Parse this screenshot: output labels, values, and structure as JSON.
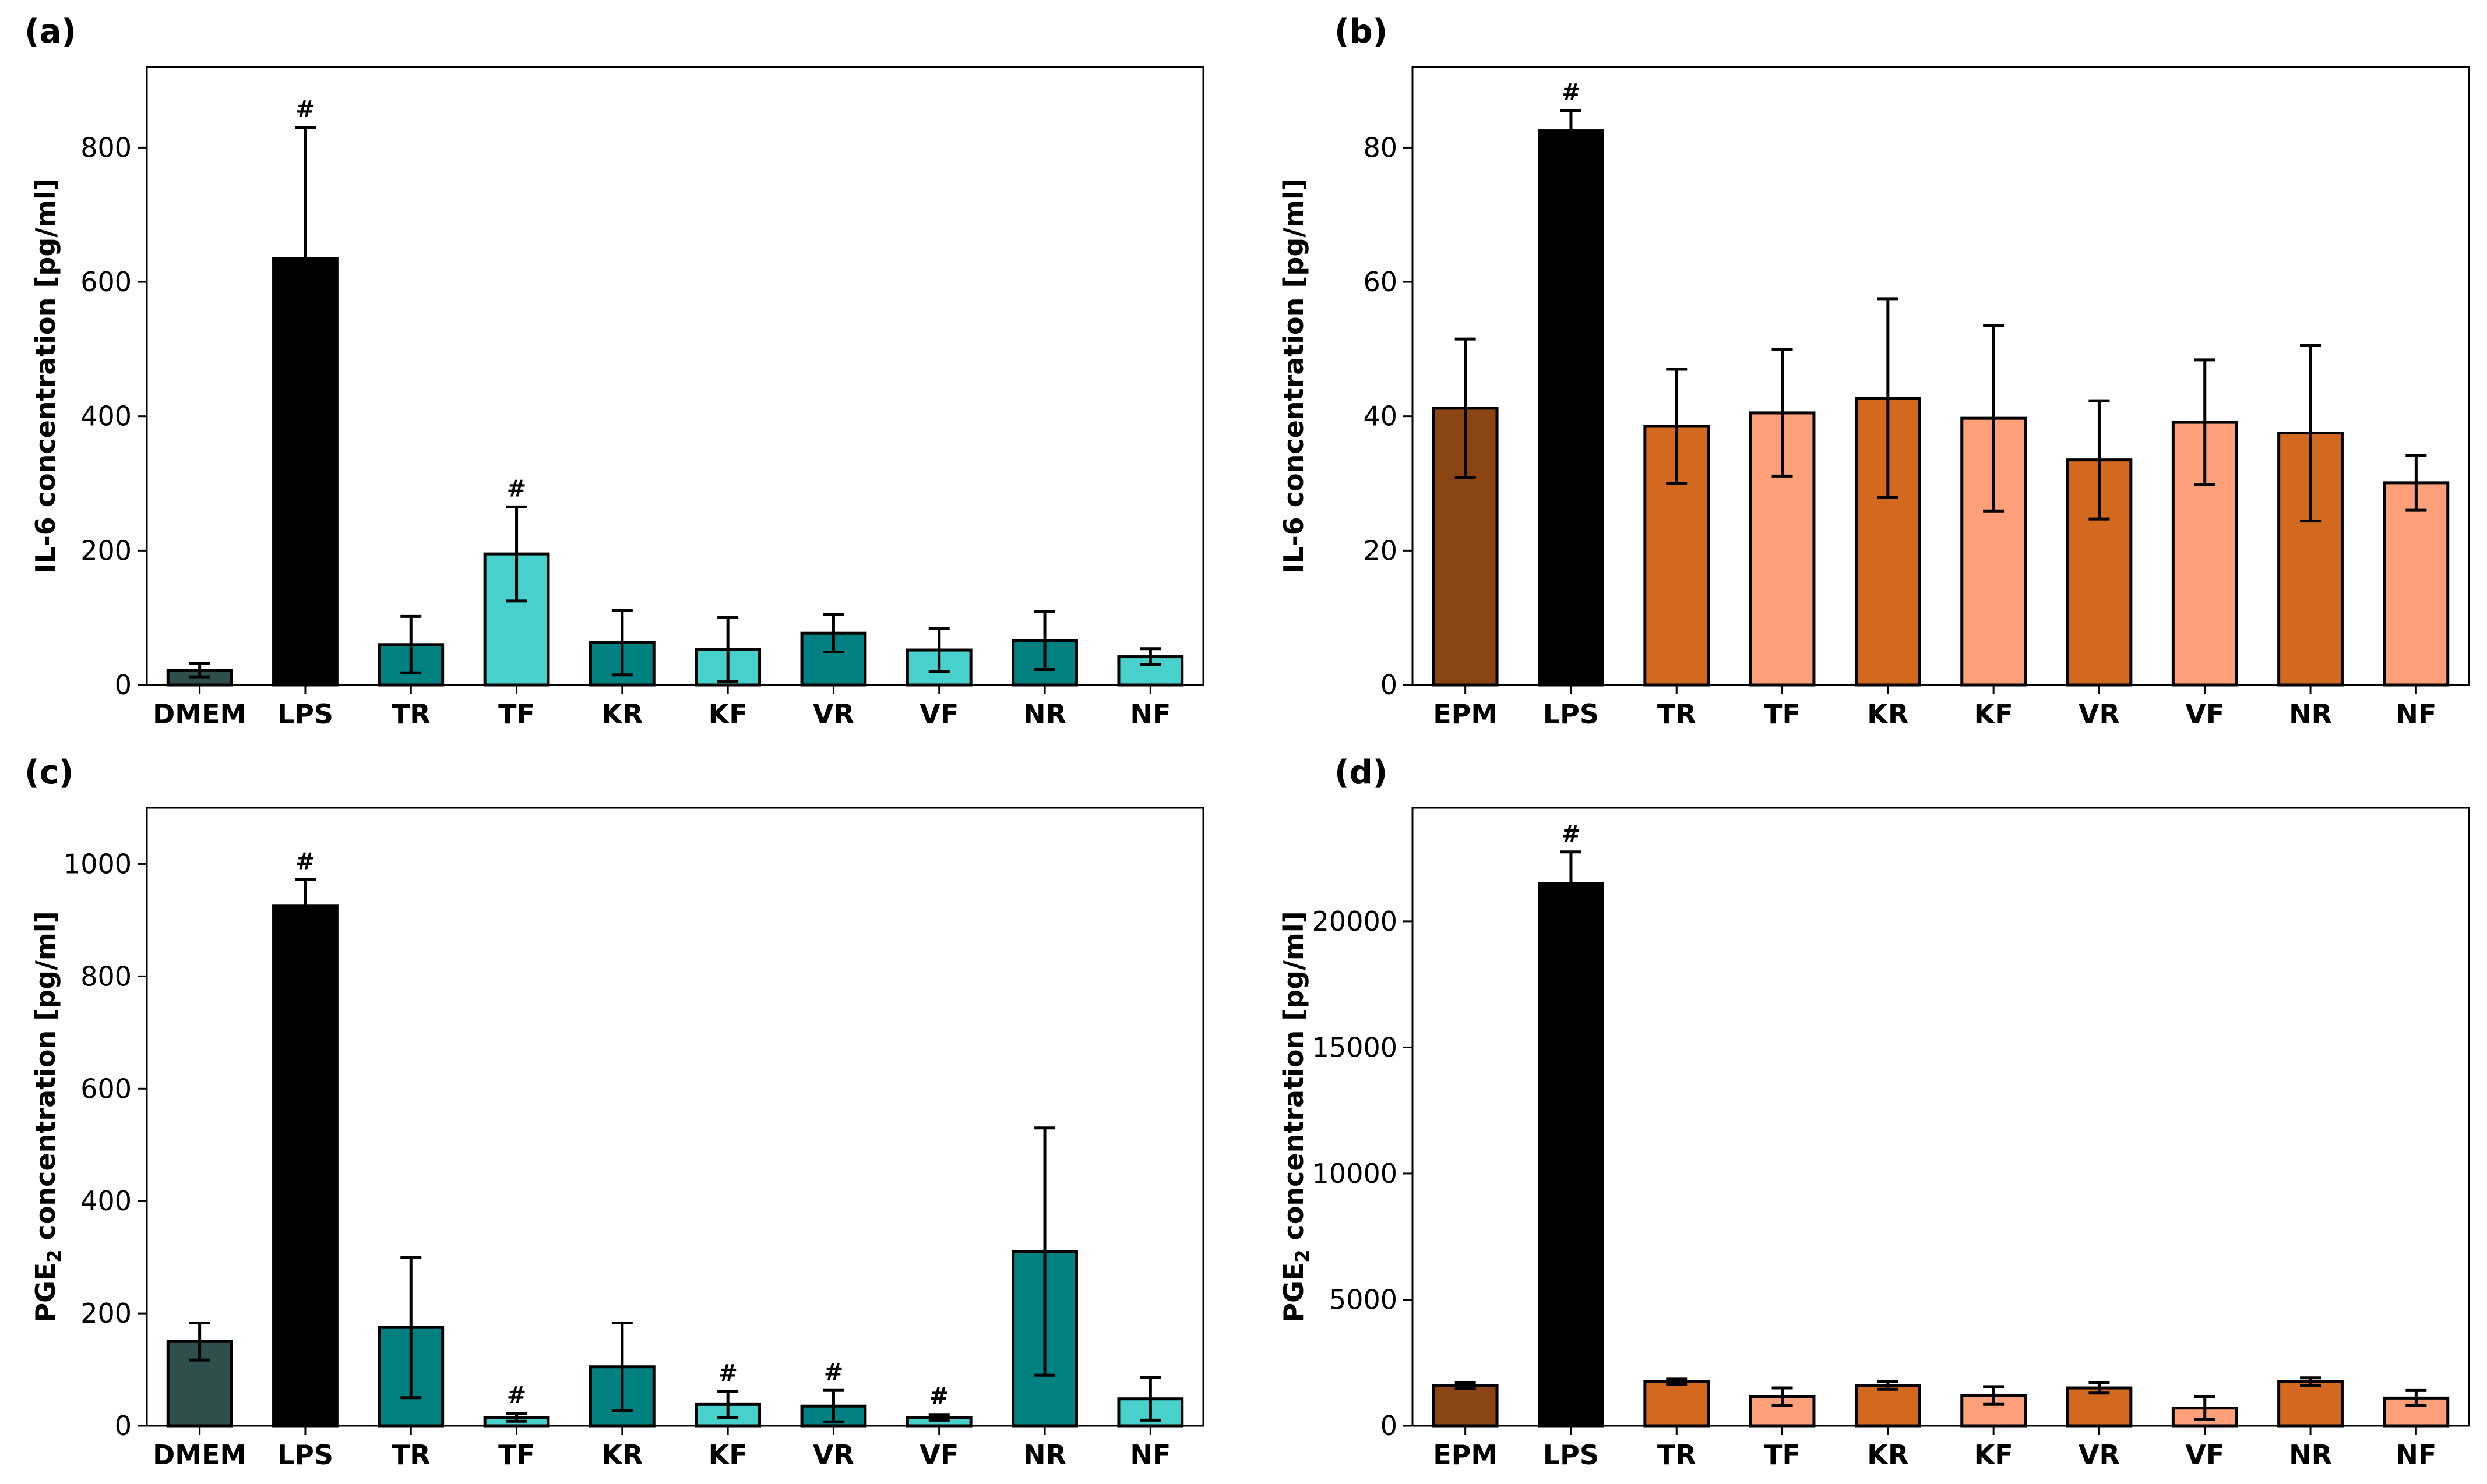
{
  "colors": {
    "dark_slate": "#2f4f4f",
    "teal": "#008080",
    "turquoise": "#48d1cc",
    "black": "#000000",
    "saddle_brown": "#8b4513",
    "chocolate": "#d2691e",
    "light_salmon": "#ffa07a"
  },
  "chart_data": [
    {
      "panel": "(a)",
      "type": "bar",
      "ylabel": "IL-6 concentration [pg/ml]",
      "ylim": [
        0,
        920
      ],
      "yticks": [
        0,
        200,
        400,
        600,
        800
      ],
      "categories": [
        "DMEM",
        "LPS",
        "TR",
        "TF",
        "KR",
        "KF",
        "VR",
        "VF",
        "NR",
        "NF"
      ],
      "values": [
        22,
        635,
        60,
        195,
        63,
        53,
        77,
        52,
        66,
        42
      ],
      "errors": [
        10,
        195,
        42,
        70,
        48,
        48,
        28,
        32,
        43,
        12
      ],
      "colors": [
        "#2f4f4f",
        "#000000",
        "#008080",
        "#48d1cc",
        "#008080",
        "#48d1cc",
        "#008080",
        "#48d1cc",
        "#008080",
        "#48d1cc"
      ],
      "significance": [
        "",
        "#",
        "",
        "#",
        "",
        "",
        "",
        "",
        "",
        ""
      ]
    },
    {
      "panel": "(b)",
      "type": "bar",
      "ylabel": "IL-6 concentration [pg/ml]",
      "ylim": [
        0,
        92
      ],
      "yticks": [
        0,
        20,
        40,
        60,
        80
      ],
      "categories": [
        "EPM",
        "LPS",
        "TR",
        "TF",
        "KR",
        "KF",
        "VR",
        "VF",
        "NR",
        "NF"
      ],
      "values": [
        41.2,
        82.5,
        38.5,
        40.5,
        42.7,
        39.7,
        33.5,
        39.1,
        37.5,
        30.1
      ],
      "errors": [
        10.3,
        3.0,
        8.5,
        9.4,
        14.8,
        13.8,
        8.8,
        9.3,
        13.1,
        4.1
      ],
      "colors": [
        "#8b4513",
        "#000000",
        "#d2691e",
        "#ffa07a",
        "#d2691e",
        "#ffa07a",
        "#d2691e",
        "#ffa07a",
        "#d2691e",
        "#ffa07a"
      ],
      "significance": [
        "",
        "#",
        "",
        "",
        "",
        "",
        "",
        "",
        "",
        ""
      ]
    },
    {
      "panel": "(c)",
      "type": "bar",
      "ylabel_main": "PGE",
      "ylabel_sub": "2",
      "ylabel_rest": " concentration [pg/ml]",
      "ylim": [
        0,
        1100
      ],
      "yticks": [
        0,
        200,
        400,
        600,
        800,
        1000
      ],
      "categories": [
        "DMEM",
        "LPS",
        "TR",
        "TF",
        "KR",
        "KF",
        "VR",
        "VF",
        "NR",
        "NF"
      ],
      "values": [
        150,
        925,
        175,
        15,
        105,
        38,
        35,
        15,
        310,
        48
      ],
      "errors": [
        33,
        47,
        125,
        7,
        78,
        23,
        28,
        5,
        220,
        38
      ],
      "colors": [
        "#2f4f4f",
        "#000000",
        "#008080",
        "#48d1cc",
        "#008080",
        "#48d1cc",
        "#008080",
        "#48d1cc",
        "#008080",
        "#48d1cc"
      ],
      "significance": [
        "",
        "#",
        "",
        "#",
        "",
        "#",
        "#",
        "#",
        "",
        ""
      ]
    },
    {
      "panel": "(d)",
      "type": "bar",
      "ylabel_main": "PGE",
      "ylabel_sub": "2",
      "ylabel_rest": " concentration [pg/ml]",
      "ylim": [
        0,
        24500
      ],
      "yticks": [
        0,
        5000,
        10000,
        15000,
        20000
      ],
      "categories": [
        "EPM",
        "LPS",
        "TR",
        "TF",
        "KR",
        "KF",
        "VR",
        "VF",
        "NR",
        "NF"
      ],
      "values": [
        1600,
        21500,
        1750,
        1150,
        1600,
        1200,
        1500,
        700,
        1750,
        1100
      ],
      "errors": [
        120,
        1250,
        100,
        350,
        150,
        350,
        200,
        450,
        150,
        300
      ],
      "colors": [
        "#8b4513",
        "#000000",
        "#d2691e",
        "#ffa07a",
        "#d2691e",
        "#ffa07a",
        "#d2691e",
        "#ffa07a",
        "#d2691e",
        "#ffa07a"
      ],
      "significance": [
        "",
        "#",
        "",
        "",
        "",
        "",
        "",
        "",
        "",
        ""
      ]
    }
  ]
}
